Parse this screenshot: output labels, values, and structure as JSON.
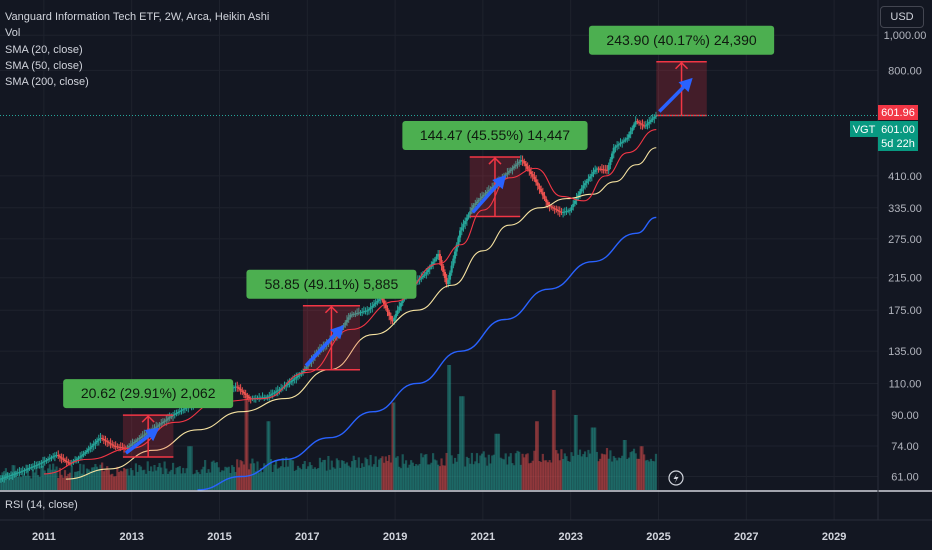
{
  "legend": {
    "title": "Vanguard Information Tech ETF, 2W, Arca, Heikin Ashi",
    "indicators": [
      "Vol",
      "SMA (20, close)",
      "SMA (50, close)",
      "SMA (200, close)"
    ]
  },
  "currency": "USD",
  "rsi_label": "RSI (14, close)",
  "price_badges": {
    "current": "601.96",
    "ticker": "VGT",
    "close": "601.00",
    "countdown": "5d 22h"
  },
  "colors": {
    "background": "#131722",
    "up": "#26a69a",
    "down": "#ef5350",
    "sma20": "#f23645",
    "sma50": "#f7e3a1",
    "sma200": "#2962ff",
    "annotation_bg": "#4caf50",
    "arrow": "#2962ff",
    "range_box": "#f23645"
  },
  "chart_data": {
    "type": "candlestick",
    "x_axis": {
      "range": [
        2010,
        2030
      ],
      "ticks": [
        "2011",
        "2013",
        "2015",
        "2017",
        "2019",
        "2021",
        "2023",
        "2025",
        "2027",
        "2029"
      ]
    },
    "y_axis": {
      "scale": "log",
      "range": [
        56,
        1250
      ],
      "ticks": [
        "1,000.00",
        "800.00",
        "410.00",
        "335.00",
        "275.00",
        "215.00",
        "175.00",
        "135.00",
        "110.00",
        "90.00",
        "74.00",
        "61.00"
      ]
    },
    "price_path": [
      [
        2010.0,
        60
      ],
      [
        2010.5,
        63
      ],
      [
        2010.9,
        66
      ],
      [
        2011.3,
        70
      ],
      [
        2011.6,
        66
      ],
      [
        2011.9,
        70
      ],
      [
        2012.3,
        78
      ],
      [
        2012.6,
        74
      ],
      [
        2012.9,
        73
      ],
      [
        2013.2,
        78
      ],
      [
        2013.6,
        84
      ],
      [
        2013.95,
        90
      ],
      [
        2014.3,
        95
      ],
      [
        2014.7,
        100
      ],
      [
        2015.0,
        104
      ],
      [
        2015.4,
        108
      ],
      [
        2015.7,
        100
      ],
      [
        2016.1,
        101
      ],
      [
        2016.5,
        108
      ],
      [
        2016.9,
        118
      ],
      [
        2017.3,
        137
      ],
      [
        2017.7,
        150
      ],
      [
        2018.0,
        170
      ],
      [
        2018.4,
        175
      ],
      [
        2018.7,
        190
      ],
      [
        2018.95,
        162
      ],
      [
        2019.3,
        200
      ],
      [
        2019.7,
        220
      ],
      [
        2020.0,
        250
      ],
      [
        2020.2,
        205
      ],
      [
        2020.5,
        290
      ],
      [
        2020.8,
        340
      ],
      [
        2021.0,
        360
      ],
      [
        2021.5,
        410
      ],
      [
        2021.9,
        455
      ],
      [
        2022.2,
        400
      ],
      [
        2022.5,
        340
      ],
      [
        2022.8,
        325
      ],
      [
        2023.0,
        330
      ],
      [
        2023.3,
        385
      ],
      [
        2023.6,
        430
      ],
      [
        2023.85,
        425
      ],
      [
        2024.0,
        490
      ],
      [
        2024.3,
        520
      ],
      [
        2024.5,
        580
      ],
      [
        2024.7,
        560
      ],
      [
        2024.95,
        601
      ]
    ],
    "sma_20": [
      [
        2011.0,
        62
      ],
      [
        2012.0,
        68
      ],
      [
        2013.0,
        73
      ],
      [
        2014.0,
        86
      ],
      [
        2015.0,
        98
      ],
      [
        2016.0,
        100
      ],
      [
        2017.0,
        118
      ],
      [
        2018.0,
        155
      ],
      [
        2019.0,
        185
      ],
      [
        2020.0,
        235
      ],
      [
        2020.5,
        265
      ],
      [
        2021.0,
        330
      ],
      [
        2021.6,
        405
      ],
      [
        2022.2,
        430
      ],
      [
        2022.8,
        360
      ],
      [
        2023.3,
        350
      ],
      [
        2023.8,
        410
      ],
      [
        2024.3,
        475
      ],
      [
        2024.95,
        550
      ]
    ],
    "sma_50": [
      [
        2011.5,
        60
      ],
      [
        2012.5,
        64
      ],
      [
        2013.5,
        72
      ],
      [
        2014.5,
        82
      ],
      [
        2015.5,
        92
      ],
      [
        2016.5,
        100
      ],
      [
        2017.5,
        120
      ],
      [
        2018.5,
        150
      ],
      [
        2019.5,
        175
      ],
      [
        2020.3,
        205
      ],
      [
        2021.0,
        255
      ],
      [
        2021.6,
        300
      ],
      [
        2022.3,
        335
      ],
      [
        2022.9,
        355
      ],
      [
        2023.5,
        365
      ],
      [
        2024.0,
        395
      ],
      [
        2024.5,
        440
      ],
      [
        2024.95,
        490
      ]
    ],
    "sma_200": [
      [
        2014.5,
        56
      ],
      [
        2015.5,
        61
      ],
      [
        2016.5,
        68
      ],
      [
        2017.5,
        78
      ],
      [
        2018.5,
        92
      ],
      [
        2019.5,
        110
      ],
      [
        2020.5,
        135
      ],
      [
        2021.5,
        165
      ],
      [
        2022.5,
        200
      ],
      [
        2023.5,
        238
      ],
      [
        2024.5,
        285
      ],
      [
        2024.95,
        315
      ]
    ],
    "volume_highlights": [
      [
        2014.3,
        0.35
      ],
      [
        2015.6,
        0.75
      ],
      [
        2016.1,
        0.55
      ],
      [
        2018.95,
        0.7
      ],
      [
        2020.2,
        1.0
      ],
      [
        2020.5,
        0.75
      ],
      [
        2021.3,
        0.45
      ],
      [
        2022.2,
        0.55
      ],
      [
        2022.6,
        0.8
      ],
      [
        2023.1,
        0.6
      ],
      [
        2023.5,
        0.5
      ],
      [
        2024.2,
        0.4
      ],
      [
        2024.6,
        0.35
      ]
    ],
    "annotations": [
      {
        "label": "20.62 (29.91%) 2,062",
        "x_start": 2012.8,
        "x_end": 2013.95,
        "y_low": 69,
        "y_high": 90
      },
      {
        "label": "58.85 (49.11%) 5,885",
        "x_start": 2016.9,
        "x_end": 2018.2,
        "y_low": 120,
        "y_high": 180
      },
      {
        "label": "144.47 (45.55%) 14,447",
        "x_start": 2020.7,
        "x_end": 2021.85,
        "y_low": 317,
        "y_high": 462
      },
      {
        "label": "243.90 (40.17%) 24,390",
        "x_start": 2024.95,
        "x_end": 2026.1,
        "y_low": 601,
        "y_high": 845
      }
    ]
  }
}
